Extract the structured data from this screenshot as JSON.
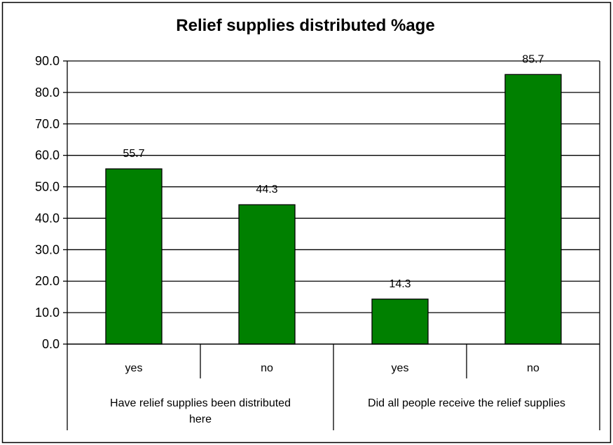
{
  "chart_data": {
    "type": "bar",
    "title": "Relief supplies distributed %age",
    "groups": [
      {
        "label_lines": [
          "Have relief supplies been distributed",
          "here"
        ],
        "categories": [
          "yes",
          "no"
        ]
      },
      {
        "label_lines": [
          "Did all people receive the relief supplies"
        ],
        "categories": [
          "yes",
          "no"
        ]
      }
    ],
    "categories": [
      "yes",
      "no",
      "yes",
      "no"
    ],
    "values": [
      55.7,
      44.3,
      14.3,
      85.7
    ],
    "data_labels": [
      "55.7",
      "44.3",
      "14.3",
      "85.7"
    ],
    "ylim": [
      0,
      90
    ],
    "yticks": [
      "0.0",
      "10.0",
      "20.0",
      "30.0",
      "40.0",
      "50.0",
      "60.0",
      "70.0",
      "80.0",
      "90.0"
    ],
    "grid": true,
    "legend": "none",
    "bar_color": "#008000"
  }
}
